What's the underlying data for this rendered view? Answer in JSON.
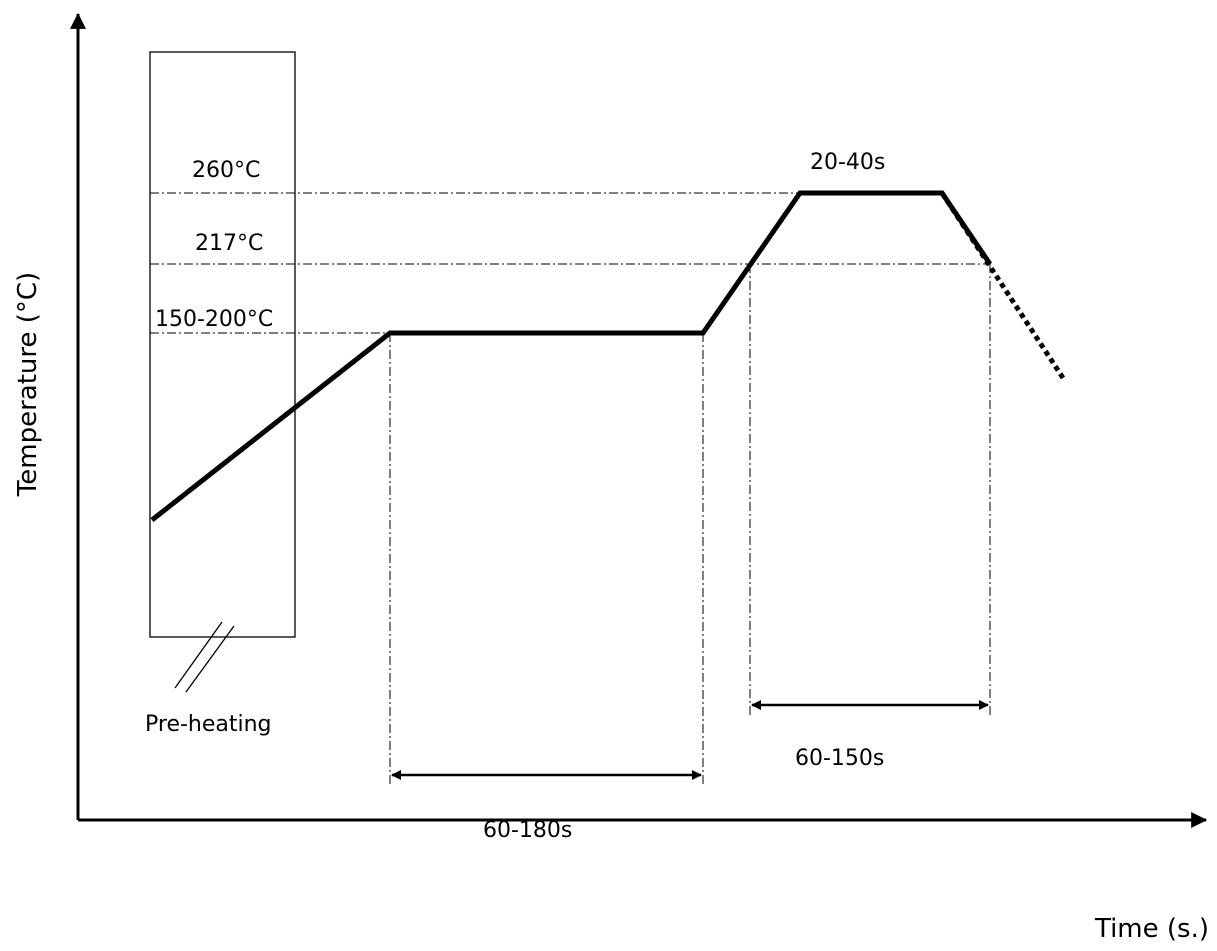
{
  "diagram": {
    "temperature_labels": {
      "peak": "260°C",
      "liquidus": "217°C",
      "soak": "150-200°C"
    },
    "zone_label": "Pre-heating",
    "durations": {
      "peak_dwell": "20-40s",
      "soak_time": "60-180s",
      "above_liquidus_time": "60-150s"
    },
    "axes": {
      "x_label": "Time (s.)",
      "y_label": "Temperature (°C)"
    }
  }
}
